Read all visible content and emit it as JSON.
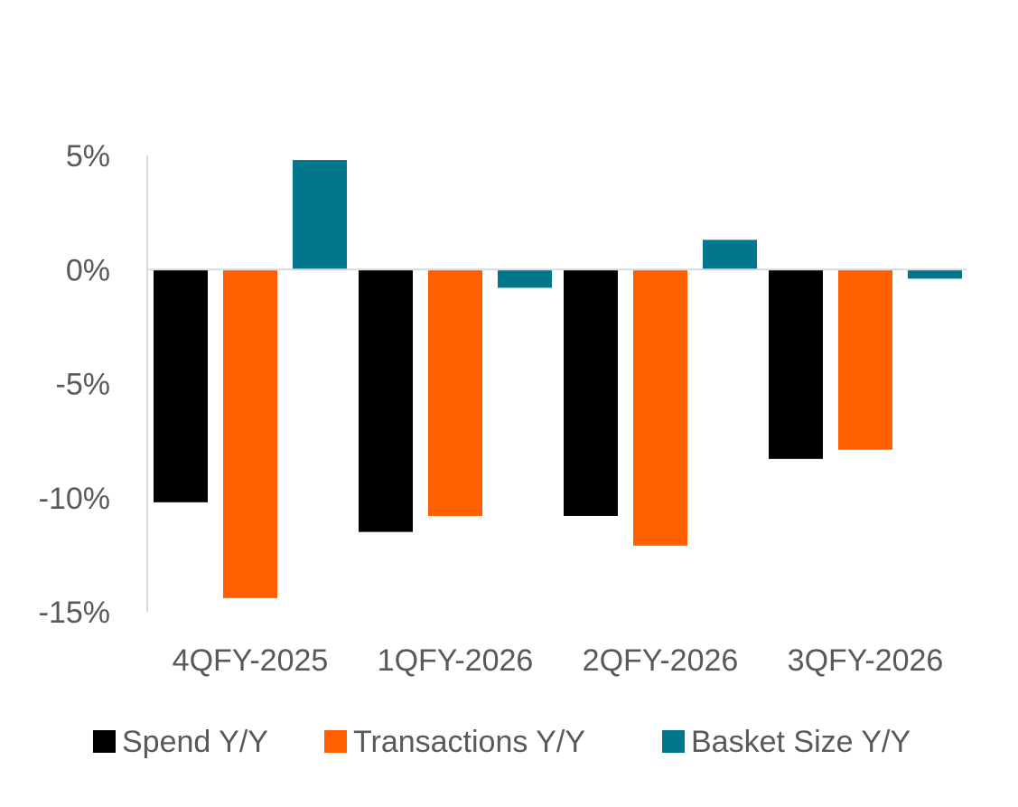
{
  "chart_data": {
    "type": "bar",
    "categories": [
      "4QFY-2025",
      "1QFY-2026",
      "2QFY-2026",
      "3QFY-2026"
    ],
    "series": [
      {
        "name": "Spend Y/Y",
        "color": "#000000",
        "values": [
          -10.2,
          -11.5,
          -10.8,
          -8.3
        ]
      },
      {
        "name": "Transactions Y/Y",
        "color": "#FF5F00",
        "values": [
          -14.4,
          -10.8,
          -12.1,
          -7.9
        ]
      },
      {
        "name": "Basket Size Y/Y",
        "color": "#00778B",
        "values": [
          4.8,
          -0.8,
          1.3,
          -0.4
        ]
      }
    ],
    "yticks": [
      5,
      0,
      -5,
      -10,
      -15
    ],
    "ytick_labels": [
      "5%",
      "0%",
      "-5%",
      "-10%",
      "-15%"
    ],
    "ylim": [
      -15,
      5
    ],
    "title": "",
    "xlabel": "",
    "ylabel": "",
    "grid": false,
    "legend_position": "bottom"
  }
}
